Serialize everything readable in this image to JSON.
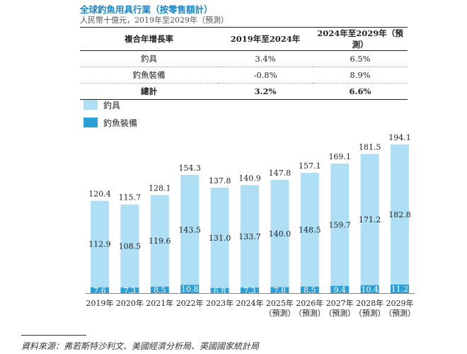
{
  "header": {
    "title": "全球釣魚用具行業（按零售額計）",
    "subtitle": "人民幣十億元，2019年至2029年（預測）"
  },
  "cagr_table": {
    "columns": [
      "複合年增長率",
      "2019年至2024年",
      "2024年至2029年（預測）"
    ],
    "rows": [
      {
        "label": "釣具",
        "v1": "3.4%",
        "v2": "6.5%"
      },
      {
        "label": "釣魚裝備",
        "v1": "-0.8%",
        "v2": "8.9%"
      },
      {
        "label": "總計",
        "v1": "3.2%",
        "v2": "6.6%"
      }
    ]
  },
  "chart_data": {
    "type": "bar",
    "stacked": true,
    "categories": [
      "2019年",
      "2020年",
      "2021年",
      "2022年",
      "2023年",
      "2024年",
      "2025年\n（預測）",
      "2026年\n（預測）",
      "2027年\n（預測）",
      "2028年\n（預測）",
      "2029年\n（預測）"
    ],
    "series": [
      {
        "name": "釣魚裝備",
        "color": "#2a9fd8",
        "values": [
          7.6,
          7.3,
          8.5,
          10.8,
          6.8,
          7.3,
          7.8,
          8.5,
          9.4,
          10.4,
          11.2
        ]
      },
      {
        "name": "釣具",
        "color": "#aedff5",
        "values": [
          112.9,
          108.5,
          119.6,
          143.5,
          131.0,
          133.7,
          140.0,
          148.5,
          159.7,
          171.2,
          182.8
        ]
      }
    ],
    "totals": [
      120.4,
      115.7,
      128.1,
      154.3,
      137.8,
      140.9,
      147.8,
      157.1,
      169.1,
      181.5,
      194.1
    ],
    "legend": [
      "釣具",
      "釣魚裝備"
    ],
    "legend_position": "top-left",
    "ylim": [
      0,
      194.1
    ]
  },
  "footer": {
    "source": "資料來源：弗若斯特沙利文、美國經濟分析局、英國國家統計局"
  }
}
